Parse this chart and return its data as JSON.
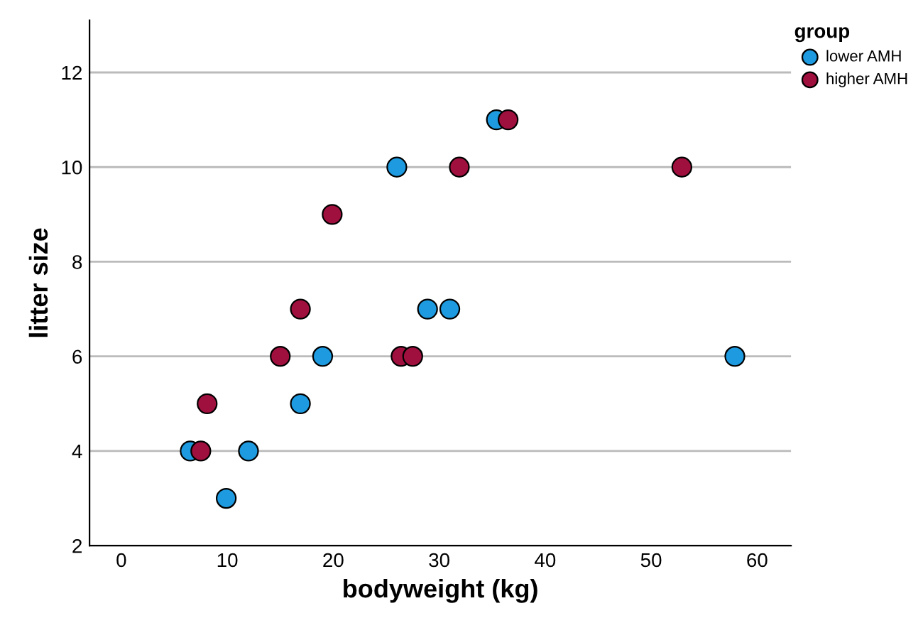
{
  "chart_data": {
    "type": "scatter",
    "xlabel": "bodyweight (kg)",
    "ylabel": "litter size",
    "legend_title": "group",
    "legend": "top right",
    "grid": "y",
    "marker": "circle",
    "xlim": [
      -3,
      63.2
    ],
    "xticks": [
      0,
      10,
      20,
      30,
      40,
      50,
      60
    ],
    "ylim": [
      2,
      13.1
    ],
    "yticks": [
      2,
      4,
      6,
      8,
      10,
      12
    ],
    "series": [
      {
        "name": "lower AMH",
        "color": "#1e9be0",
        "x": [
          6.5,
          9.9,
          12.0,
          16.9,
          19.0,
          26.0,
          28.9,
          31.0,
          35.4,
          57.9
        ],
        "values": [
          4,
          3,
          4,
          5,
          6,
          10,
          7,
          7,
          11,
          6
        ]
      },
      {
        "name": "higher AMH",
        "color": "#a0103f",
        "x": [
          7.5,
          8.1,
          15.0,
          16.9,
          19.9,
          26.4,
          27.5,
          31.9,
          36.5,
          52.9
        ],
        "values": [
          4,
          5,
          6,
          7,
          9,
          6,
          6,
          10,
          11,
          10
        ]
      }
    ]
  }
}
